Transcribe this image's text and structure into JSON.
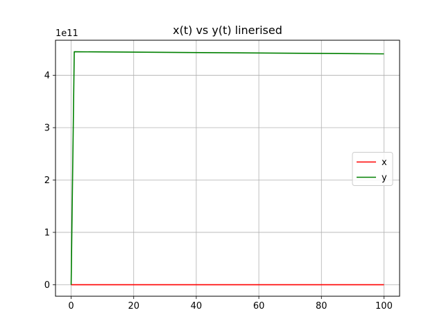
{
  "chart_data": {
    "type": "line",
    "title": "x(t) vs y(t) linerised",
    "xlabel": "",
    "ylabel": "",
    "offset_text": "1e11",
    "xlim": [
      -5,
      105
    ],
    "ylim": [
      -0.22,
      4.67
    ],
    "x_ticks": [
      0,
      20,
      40,
      60,
      80,
      100
    ],
    "x_tick_labels": [
      "0",
      "20",
      "40",
      "60",
      "80",
      "100"
    ],
    "y_ticks": [
      0,
      1,
      2,
      3,
      4
    ],
    "y_tick_labels": [
      "0",
      "1",
      "2",
      "3",
      "4"
    ],
    "grid": true,
    "legend_position": "center-right",
    "series": [
      {
        "name": "x",
        "color": "#ff0000",
        "x": [
          0,
          1,
          100
        ],
        "y": [
          0,
          0,
          0
        ]
      },
      {
        "name": "y",
        "color": "#008000",
        "x": [
          0,
          1,
          100
        ],
        "y": [
          0,
          4.45,
          4.41
        ]
      }
    ]
  }
}
